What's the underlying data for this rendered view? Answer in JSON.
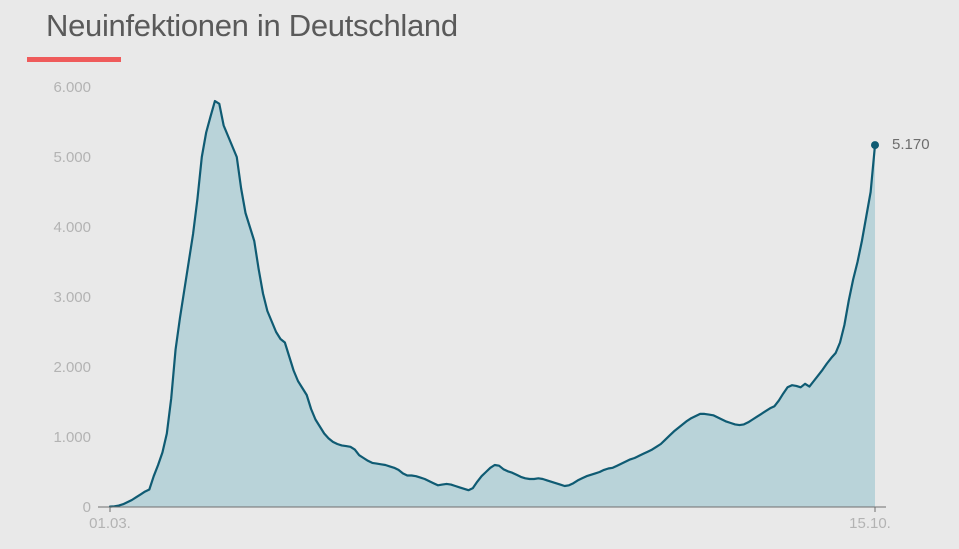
{
  "colors": {
    "background": "#e9e9e9",
    "accent": "#ef5b5b",
    "line": "#0f5b73",
    "area": "#b9d3d9",
    "axis": "#6e6e6e",
    "tick_text": "#b3b3b3"
  },
  "chart_data": {
    "type": "area",
    "title": "Neuinfektionen in Deutschland",
    "xlabel": "",
    "ylabel": "",
    "grid": false,
    "x_range": [
      "01.03.",
      "15.10."
    ],
    "x_tick_labels": [
      "01.03.",
      "15.10."
    ],
    "ylim": [
      0,
      6000
    ],
    "y_ticks": [
      0,
      1000,
      2000,
      3000,
      4000,
      5000,
      6000
    ],
    "y_tick_labels": [
      "0",
      "1.000",
      "2.000",
      "3.000",
      "4.000",
      "5.000",
      "6.000"
    ],
    "annotation": {
      "label": "5.170",
      "value": 5170,
      "x": "15.10."
    },
    "series": [
      {
        "values": [
          5,
          10,
          20,
          40,
          70,
          100,
          140,
          180,
          220,
          250,
          440,
          600,
          780,
          1050,
          1550,
          2250,
          2700,
          3100,
          3500,
          3900,
          4400,
          5000,
          5350,
          5580,
          5800,
          5760,
          5450,
          5300,
          5150,
          5000,
          4550,
          4200,
          4000,
          3800,
          3400,
          3050,
          2800,
          2650,
          2500,
          2400,
          2350,
          2150,
          1950,
          1800,
          1700,
          1600,
          1400,
          1250,
          1150,
          1050,
          980,
          930,
          900,
          880,
          870,
          860,
          820,
          740,
          700,
          660,
          630,
          620,
          610,
          600,
          580,
          560,
          530,
          480,
          450,
          450,
          440,
          420,
          400,
          370,
          340,
          310,
          320,
          330,
          320,
          300,
          280,
          260,
          240,
          270,
          360,
          440,
          500,
          560,
          600,
          590,
          540,
          510,
          490,
          460,
          430,
          410,
          400,
          400,
          410,
          400,
          380,
          360,
          340,
          320,
          300,
          310,
          340,
          380,
          410,
          440,
          460,
          480,
          500,
          530,
          550,
          560,
          590,
          620,
          650,
          680,
          700,
          730,
          760,
          790,
          820,
          860,
          900,
          960,
          1020,
          1080,
          1130,
          1180,
          1230,
          1270,
          1300,
          1330,
          1330,
          1320,
          1310,
          1280,
          1250,
          1220,
          1200,
          1180,
          1170,
          1180,
          1210,
          1250,
          1290,
          1330,
          1370,
          1410,
          1440,
          1520,
          1620,
          1710,
          1740,
          1730,
          1710,
          1760,
          1720,
          1800,
          1880,
          1960,
          2050,
          2130,
          2200,
          2350,
          2600,
          2950,
          3250,
          3500,
          3800,
          4150,
          4500,
          5170
        ]
      }
    ]
  }
}
